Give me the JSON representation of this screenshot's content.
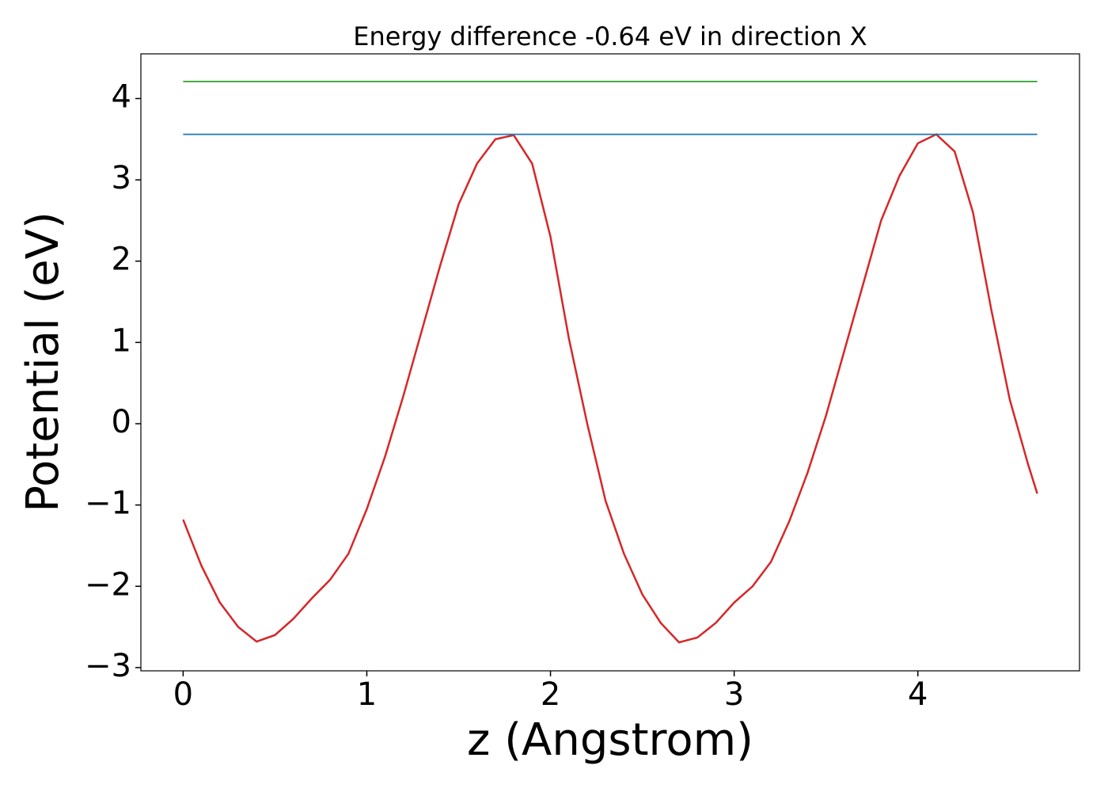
{
  "chart_data": {
    "type": "line",
    "title": "Energy difference -0.64 eV in direction X",
    "xlabel": "z (Angstrom)",
    "ylabel": "Potential (eV)",
    "x": [
      0,
      0.1,
      0.2,
      0.3,
      0.4,
      0.5,
      0.6,
      0.7,
      0.8,
      0.9,
      1.0,
      1.1,
      1.2,
      1.3,
      1.4,
      1.5,
      1.6,
      1.7,
      1.8,
      1.9,
      2.0,
      2.1,
      2.2,
      2.3,
      2.4,
      2.5,
      2.6,
      2.7,
      2.8,
      2.9,
      3.0,
      3.1,
      3.2,
      3.3,
      3.4,
      3.5,
      3.6,
      3.7,
      3.8,
      3.9,
      4.0,
      4.1,
      4.2,
      4.3,
      4.4,
      4.5,
      4.6,
      4.65
    ],
    "series": [
      {
        "color": "#d62728",
        "values": [
          -1.18,
          -1.75,
          -2.2,
          -2.5,
          -2.68,
          -2.6,
          -2.4,
          -2.15,
          -1.92,
          -1.6,
          -1.05,
          -0.4,
          0.35,
          1.15,
          1.95,
          2.7,
          3.2,
          3.5,
          3.55,
          3.2,
          2.3,
          1.05,
          0.0,
          -0.95,
          -1.6,
          -2.1,
          -2.45,
          -2.69,
          -2.63,
          -2.45,
          -2.2,
          -2.0,
          -1.7,
          -1.2,
          -0.6,
          0.1,
          0.9,
          1.7,
          2.5,
          3.05,
          3.45,
          3.56,
          3.35,
          2.6,
          1.4,
          0.3,
          -0.5,
          -0.86
        ]
      },
      {
        "color": "#1f77b4",
        "values": [
          3.56,
          3.56,
          3.56,
          3.56,
          3.56,
          3.56,
          3.56,
          3.56,
          3.56,
          3.56,
          3.56,
          3.56,
          3.56,
          3.56,
          3.56,
          3.56,
          3.56,
          3.56,
          3.56,
          3.56,
          3.56,
          3.56,
          3.56,
          3.56,
          3.56,
          3.56,
          3.56,
          3.56,
          3.56,
          3.56,
          3.56,
          3.56,
          3.56,
          3.56,
          3.56,
          3.56,
          3.56,
          3.56,
          3.56,
          3.56,
          3.56,
          3.56,
          3.56,
          3.56,
          3.56,
          3.56,
          3.56,
          3.56
        ]
      },
      {
        "color": "#2ca02c",
        "values": [
          4.21,
          4.21,
          4.21,
          4.21,
          4.21,
          4.21,
          4.21,
          4.21,
          4.21,
          4.21,
          4.21,
          4.21,
          4.21,
          4.21,
          4.21,
          4.21,
          4.21,
          4.21,
          4.21,
          4.21,
          4.21,
          4.21,
          4.21,
          4.21,
          4.21,
          4.21,
          4.21,
          4.21,
          4.21,
          4.21,
          4.21,
          4.21,
          4.21,
          4.21,
          4.21,
          4.21,
          4.21,
          4.21,
          4.21,
          4.21,
          4.21,
          4.21,
          4.21,
          4.21,
          4.21,
          4.21,
          4.21,
          4.21
        ]
      }
    ],
    "xlim": [
      -0.23,
      4.88
    ],
    "xticks": [
      0,
      1,
      2,
      3,
      4
    ],
    "ylim": [
      -3.04,
      4.55
    ],
    "yticks": [
      {
        "value": -3,
        "label": "−3"
      },
      {
        "value": -2,
        "label": "−2"
      },
      {
        "value": -1,
        "label": "−1"
      },
      0,
      1,
      2,
      3,
      4
    ]
  }
}
